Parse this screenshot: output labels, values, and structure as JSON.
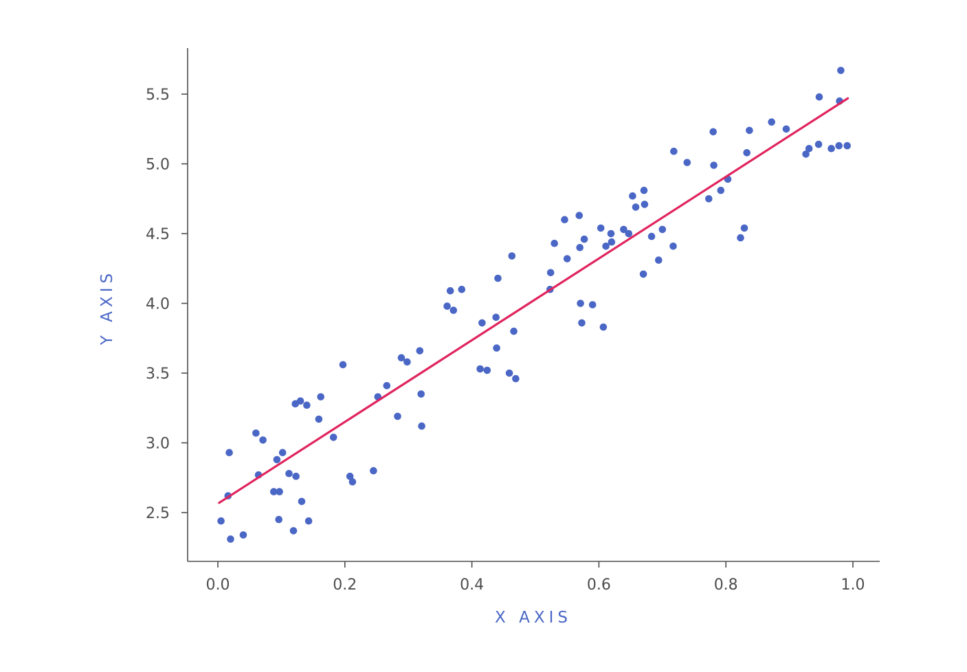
{
  "chart_data": {
    "type": "scatter",
    "title": "",
    "xlabel": "X AXIS",
    "ylabel": "Y AXIS",
    "xlim": [
      -0.048,
      1.045
    ],
    "ylim": [
      2.15,
      5.82
    ],
    "x_ticks": [
      "0.0",
      "0.2",
      "0.4",
      "0.6",
      "0.8",
      "1.0"
    ],
    "x_tick_values": [
      0.0,
      0.2,
      0.4,
      0.6,
      0.8,
      1.0
    ],
    "y_ticks": [
      "2.5",
      "3.0",
      "3.5",
      "4.0",
      "4.5",
      "5.0",
      "5.5"
    ],
    "y_tick_values": [
      2.5,
      3.0,
      3.5,
      4.0,
      4.5,
      5.0,
      5.5
    ],
    "grid": false,
    "legend": "none",
    "colors": {
      "points": "#4a67c6",
      "fit_line": "#e0245e",
      "axis": "#4d4d4d",
      "axis_title": "#4a67c6"
    },
    "series": [
      {
        "kind": "scatter",
        "x": [
          0.005,
          0.016,
          0.018,
          0.02,
          0.04,
          0.06,
          0.064,
          0.071,
          0.088,
          0.093,
          0.096,
          0.097,
          0.102,
          0.112,
          0.119,
          0.122,
          0.123,
          0.13,
          0.132,
          0.14,
          0.143,
          0.159,
          0.162,
          0.182,
          0.197,
          0.208,
          0.212,
          0.245,
          0.252,
          0.266,
          0.283,
          0.289,
          0.298,
          0.318,
          0.32,
          0.321,
          0.361,
          0.366,
          0.371,
          0.384,
          0.413,
          0.416,
          0.424,
          0.438,
          0.439,
          0.441,
          0.459,
          0.463,
          0.466,
          0.469,
          0.523,
          0.524,
          0.53,
          0.546,
          0.55,
          0.569,
          0.57,
          0.571,
          0.573,
          0.577,
          0.59,
          0.603,
          0.607,
          0.611,
          0.619,
          0.62,
          0.639,
          0.647,
          0.653,
          0.658,
          0.67,
          0.671,
          0.672,
          0.683,
          0.694,
          0.7,
          0.717,
          0.718,
          0.739,
          0.773,
          0.78,
          0.781,
          0.792,
          0.803,
          0.823,
          0.829,
          0.833,
          0.837,
          0.872,
          0.895,
          0.926,
          0.931,
          0.946,
          0.947,
          0.966,
          0.978,
          0.979,
          0.981,
          0.991
        ],
        "y": [
          2.44,
          2.62,
          2.93,
          2.31,
          2.34,
          3.07,
          2.77,
          3.02,
          2.65,
          2.88,
          2.45,
          2.65,
          2.93,
          2.78,
          2.37,
          3.28,
          2.76,
          3.3,
          2.58,
          3.27,
          2.44,
          3.17,
          3.33,
          3.04,
          3.56,
          2.76,
          2.72,
          2.8,
          3.33,
          3.41,
          3.19,
          3.61,
          3.58,
          3.66,
          3.35,
          3.12,
          3.98,
          4.09,
          3.95,
          4.1,
          3.53,
          3.86,
          3.52,
          3.9,
          3.68,
          4.18,
          3.5,
          4.34,
          3.8,
          3.46,
          4.1,
          4.22,
          4.43,
          4.6,
          4.32,
          4.63,
          4.4,
          4.0,
          3.86,
          4.46,
          3.99,
          4.54,
          3.83,
          4.41,
          4.5,
          4.44,
          4.53,
          4.5,
          4.77,
          4.69,
          4.21,
          4.81,
          4.71,
          4.48,
          4.31,
          4.53,
          4.41,
          5.09,
          5.01,
          4.75,
          5.23,
          4.99,
          4.81,
          4.89,
          4.47,
          4.54,
          5.08,
          5.24,
          5.3,
          5.25,
          5.07,
          5.11,
          5.14,
          5.48,
          5.11,
          5.13,
          5.45,
          5.67,
          5.13
        ]
      },
      {
        "kind": "line",
        "x": [
          0.002,
          0.992
        ],
        "y": [
          2.57,
          5.47
        ]
      }
    ]
  }
}
